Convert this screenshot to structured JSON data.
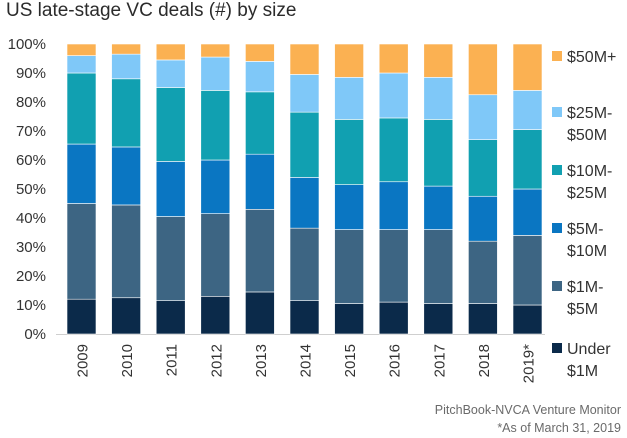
{
  "chart_data": {
    "type": "bar",
    "stacked": true,
    "percent": true,
    "title": "US late-stage VC deals (#) by size",
    "categories": [
      "2009",
      "2010",
      "2011",
      "2012",
      "2013",
      "2014",
      "2015",
      "2016",
      "2017",
      "2018",
      "2019*"
    ],
    "y_ticks": [
      "0%",
      "10%",
      "20%",
      "30%",
      "40%",
      "50%",
      "60%",
      "70%",
      "80%",
      "90%",
      "100%"
    ],
    "ylim": [
      0,
      100
    ],
    "grid": false,
    "legend_position": "right",
    "series": [
      {
        "name": "Under $1M",
        "color": "#0b2a4a",
        "values": [
          12,
          12.5,
          11.5,
          13,
          14.5,
          11.5,
          10.5,
          11,
          10.5,
          10.5,
          10
        ]
      },
      {
        "name": "$1M-$5M",
        "color": "#3d6583",
        "values": [
          33,
          32,
          29,
          28.5,
          28.5,
          25,
          25.5,
          25,
          25.5,
          21.5,
          24
        ]
      },
      {
        "name": "$5M-$10M",
        "color": "#0a76c2",
        "values": [
          20.5,
          20,
          19,
          18.5,
          19,
          17.5,
          15.5,
          16.5,
          15,
          15.5,
          16
        ]
      },
      {
        "name": "$10M-$25M",
        "color": "#11a0b1",
        "values": [
          24.5,
          23.5,
          25.5,
          24,
          21.5,
          22.5,
          22.5,
          22,
          23,
          19.5,
          20.5
        ]
      },
      {
        "name": "$25M-$50M",
        "color": "#7fc8f8",
        "values": [
          6,
          8.5,
          9.5,
          11.5,
          10.5,
          13,
          14.5,
          15.5,
          14.5,
          15.5,
          13.5
        ]
      },
      {
        "name": "$50M+",
        "color": "#fbb152",
        "values": [
          4,
          3.5,
          5.5,
          4.5,
          6,
          10.5,
          11.5,
          10,
          11.5,
          17.5,
          16
        ]
      }
    ],
    "legend_labels": [
      {
        "series": "$50M+",
        "lines": [
          "$50M+"
        ]
      },
      {
        "series": "$25M-$50M",
        "lines": [
          "$25M-",
          "$50M"
        ]
      },
      {
        "series": "$10M-$25M",
        "lines": [
          "$10M-",
          "$25M"
        ]
      },
      {
        "series": "$5M-$10M",
        "lines": [
          "$5M-",
          "$10M"
        ]
      },
      {
        "series": "$1M-$5M",
        "lines": [
          "$1M-",
          "$5M"
        ]
      },
      {
        "series": "Under $1M",
        "lines": [
          "Under",
          "$1M"
        ]
      }
    ]
  },
  "source": "PitchBook-NVCA Venture Monitor",
  "footnote": "*As of March 31, 2019"
}
